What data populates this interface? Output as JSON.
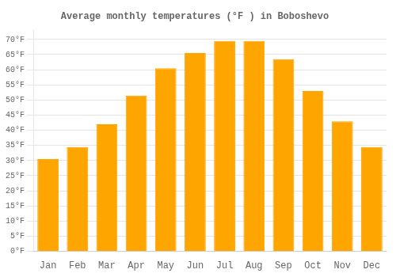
{
  "chart_data": {
    "type": "bar",
    "title": "Average monthly temperatures (°F ) in Boboshevo",
    "categories": [
      "Jan",
      "Feb",
      "Mar",
      "Apr",
      "May",
      "Jun",
      "Jul",
      "Aug",
      "Sep",
      "Oct",
      "Nov",
      "Dec"
    ],
    "values": [
      30.5,
      34.5,
      42.0,
      51.5,
      60.5,
      65.5,
      69.5,
      69.5,
      63.5,
      53.0,
      43.0,
      34.5
    ],
    "color": "#FFA500",
    "ylim": [
      0,
      73
    ],
    "yticks": [
      {
        "value": 0,
        "label": "0°F"
      },
      {
        "value": 5,
        "label": "5°F"
      },
      {
        "value": 10,
        "label": "10°F"
      },
      {
        "value": 15,
        "label": "15°F"
      },
      {
        "value": 20,
        "label": "20°F"
      },
      {
        "value": 25,
        "label": "25°F"
      },
      {
        "value": 30,
        "label": "30°F"
      },
      {
        "value": 35,
        "label": "35°F"
      },
      {
        "value": 40,
        "label": "40°F"
      },
      {
        "value": 45,
        "label": "45°F"
      },
      {
        "value": 50,
        "label": "50°F"
      },
      {
        "value": 55,
        "label": "55°F"
      },
      {
        "value": 60,
        "label": "60°F"
      },
      {
        "value": 65,
        "label": "65°F"
      },
      {
        "value": 70,
        "label": "70°F"
      }
    ],
    "grid": true
  }
}
